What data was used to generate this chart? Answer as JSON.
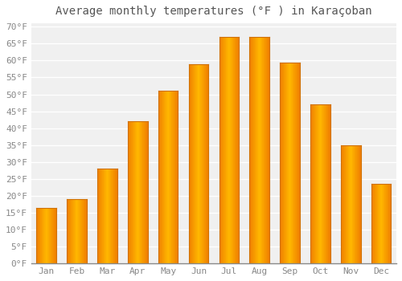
{
  "title": "Average monthly temperatures (°F ) in Karaçoban",
  "months": [
    "Jan",
    "Feb",
    "Mar",
    "Apr",
    "May",
    "Jun",
    "Jul",
    "Aug",
    "Sep",
    "Oct",
    "Nov",
    "Dec"
  ],
  "values": [
    16.5,
    19.0,
    28.0,
    42.0,
    51.0,
    59.0,
    67.0,
    67.0,
    59.5,
    47.0,
    35.0,
    23.5
  ],
  "bar_color_center": "#FFB800",
  "bar_color_edge": "#F08000",
  "background_color": "#FFFFFF",
  "plot_bg_color": "#F0F0F0",
  "grid_color": "#FFFFFF",
  "ytick_min": 0,
  "ytick_max": 70,
  "ytick_step": 5,
  "title_fontsize": 10,
  "tick_fontsize": 8,
  "title_color": "#555555",
  "tick_color": "#888888",
  "bar_width": 0.65
}
